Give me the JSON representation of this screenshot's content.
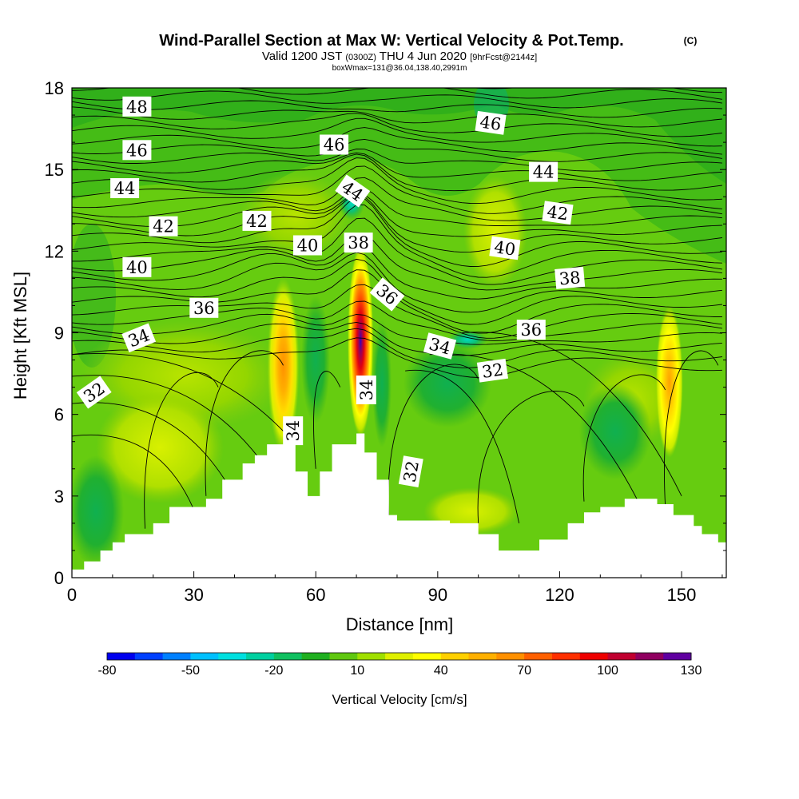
{
  "chart_data": {
    "type": "heatmap",
    "title": "Wind-Parallel Section at Max W: Vertical Velocity & Pot.Temp.",
    "copyright": "(C)",
    "subtitle_parts": [
      "Valid 1200 JST",
      "(0300Z)",
      "THU 4 Jun 2020",
      "[9hrFcst@2144z]"
    ],
    "subtitle2": "boxWmax=131@36.04,138.40,2991m",
    "xlabel": "Distance [nm]",
    "ylabel": "Height [Kft MSL]",
    "xlim": [
      0,
      161
    ],
    "ylim": [
      0,
      18
    ],
    "xticks": [
      0,
      30,
      60,
      90,
      120,
      150
    ],
    "yticks": [
      0,
      3,
      6,
      9,
      12,
      15,
      18
    ],
    "grid": false,
    "colorbar": {
      "title": "Vertical Velocity [cm/s]",
      "min": -80,
      "max": 130,
      "step": 10,
      "labels": [
        -80,
        -50,
        -20,
        10,
        40,
        70,
        100,
        130
      ],
      "colors": [
        "#0000ee",
        "#0040ff",
        "#0080ff",
        "#00c0ff",
        "#00e0e0",
        "#00d0a0",
        "#10c060",
        "#20b020",
        "#60c810",
        "#a0e000",
        "#e0f000",
        "#ffff00",
        "#ffd000",
        "#ffb000",
        "#ff9000",
        "#ff6000",
        "#ff3000",
        "#ee0000",
        "#c00030",
        "#900060",
        "#6000a0"
      ]
    },
    "terrain_kft": [
      [
        0,
        0.3
      ],
      [
        3,
        0.6
      ],
      [
        7,
        1.0
      ],
      [
        10,
        1.3
      ],
      [
        13,
        1.6
      ],
      [
        20,
        2.0
      ],
      [
        24,
        2.6
      ],
      [
        33,
        2.9
      ],
      [
        37,
        3.6
      ],
      [
        42,
        4.2
      ],
      [
        45,
        4.5
      ],
      [
        48,
        4.9
      ],
      [
        54,
        4.9
      ],
      [
        55,
        3.9
      ],
      [
        58,
        3.0
      ],
      [
        61,
        3.9
      ],
      [
        64,
        4.9
      ],
      [
        69,
        4.9
      ],
      [
        70,
        5.3
      ],
      [
        72,
        4.6
      ],
      [
        75,
        3.6
      ],
      [
        78,
        2.3
      ],
      [
        80,
        2.1
      ],
      [
        93,
        2.0
      ],
      [
        100,
        1.6
      ],
      [
        105,
        1.0
      ],
      [
        115,
        1.4
      ],
      [
        122,
        2.0
      ],
      [
        126,
        2.4
      ],
      [
        130,
        2.6
      ],
      [
        136,
        2.9
      ],
      [
        144,
        2.7
      ],
      [
        148,
        2.3
      ],
      [
        153,
        1.9
      ],
      [
        155,
        1.6
      ],
      [
        159,
        1.3
      ],
      [
        161,
        1.3
      ]
    ],
    "updrafts": [
      {
        "x": 52,
        "z": 7.8,
        "w_max": 60
      },
      {
        "x": 71,
        "z": 8.7,
        "w_max": 131
      },
      {
        "x": 147,
        "z": 7.2,
        "w_max": 55
      }
    ],
    "theta_contour_labels": [
      {
        "text": "48",
        "x": 16,
        "z": 17.3
      },
      {
        "text": "46",
        "x": 16,
        "z": 15.7
      },
      {
        "text": "44",
        "x": 13,
        "z": 14.3
      },
      {
        "text": "42",
        "x": 22.5,
        "z": 12.9
      },
      {
        "text": "40",
        "x": 16,
        "z": 11.4
      },
      {
        "text": "36",
        "x": 32.5,
        "z": 9.9
      },
      {
        "text": "34",
        "x": 16.5,
        "z": 8.8
      },
      {
        "text": "32",
        "x": 5.5,
        "z": 6.8
      },
      {
        "text": "42",
        "x": 45.5,
        "z": 13.1
      },
      {
        "text": "40",
        "x": 58,
        "z": 12.2
      },
      {
        "text": "46",
        "x": 64.5,
        "z": 15.9
      },
      {
        "text": "44",
        "x": 69,
        "z": 14.2
      },
      {
        "text": "38",
        "x": 70.5,
        "z": 12.3
      },
      {
        "text": "36",
        "x": 77.5,
        "z": 10.4
      },
      {
        "text": "34",
        "x": 72.5,
        "z": 6.9
      },
      {
        "text": "34",
        "x": 54.5,
        "z": 5.4
      },
      {
        "text": "34",
        "x": 90.5,
        "z": 8.5
      },
      {
        "text": "32",
        "x": 83.5,
        "z": 3.9
      },
      {
        "text": "32",
        "x": 103.5,
        "z": 7.6
      },
      {
        "text": "36",
        "x": 113,
        "z": 9.1
      },
      {
        "text": "38",
        "x": 122.5,
        "z": 11.0
      },
      {
        "text": "40",
        "x": 106.5,
        "z": 12.1
      },
      {
        "text": "42",
        "x": 119.5,
        "z": 13.4
      },
      {
        "text": "44",
        "x": 116,
        "z": 14.9
      },
      {
        "text": "46",
        "x": 103,
        "z": 16.7
      }
    ]
  }
}
